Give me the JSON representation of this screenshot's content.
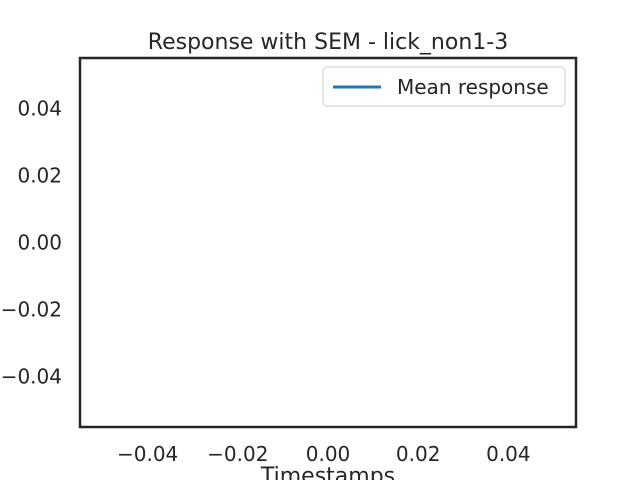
{
  "chart_data": {
    "type": "line",
    "title": "Response with SEM - lick_non1-3",
    "xlabel": "Timestamps",
    "ylabel": "",
    "xlim": [
      -0.055,
      0.055
    ],
    "ylim": [
      -0.055,
      0.055
    ],
    "xticks": [
      -0.04,
      -0.02,
      0.0,
      0.02,
      0.04
    ],
    "xtick_labels": [
      "−0.04",
      "−0.02",
      "0.00",
      "0.02",
      "0.04"
    ],
    "yticks": [
      0.04,
      0.02,
      0.0,
      -0.02,
      -0.04
    ],
    "ytick_labels": [
      "0.04",
      "0.02",
      "0.00",
      "−0.02",
      "−0.04"
    ],
    "grid": false,
    "legend_position": "top-right",
    "series": [
      {
        "name": "Mean response",
        "color": "#1f77b4",
        "x": [],
        "y": []
      }
    ]
  }
}
